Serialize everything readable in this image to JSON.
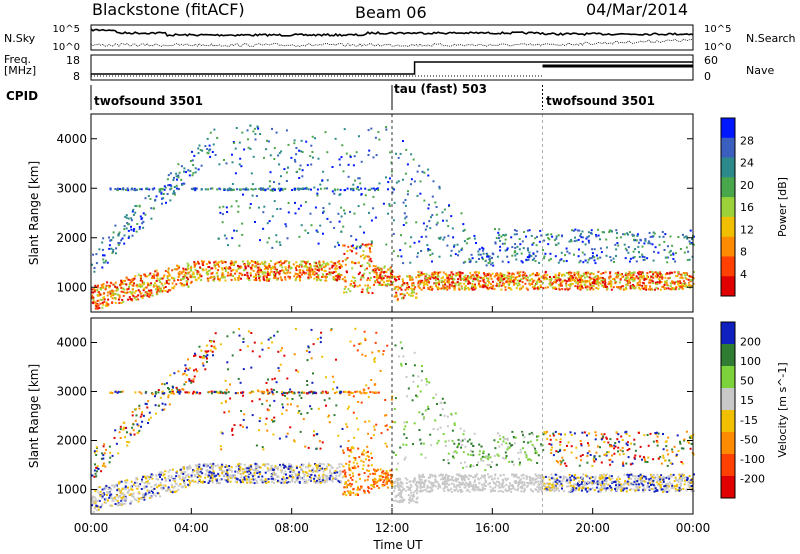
{
  "header": {
    "radar": "Blackstone (fitACF)",
    "beam": "Beam 06",
    "date": "04/Mar/2014"
  },
  "noise_panel": {
    "left_label": "N.Sky",
    "right_label": "N.Search",
    "ticks": [
      "10^5",
      "10^0"
    ]
  },
  "freq_panel": {
    "left_label_line1": "Freq.",
    "left_label_line2": "[MHz]",
    "left_ticks": [
      "18",
      "8"
    ],
    "right_ticks": [
      "60",
      "0"
    ],
    "right_label": "Nave"
  },
  "cpid": {
    "label": "CPID",
    "modes": [
      {
        "name": "twofsound 3501",
        "start_hour": 0
      },
      {
        "name": "tau (fast) 503",
        "start_hour": 12
      },
      {
        "name": "twofsound 3501",
        "start_hour": 18
      }
    ]
  },
  "chart_data": [
    {
      "type": "heatmap",
      "title": "",
      "ylabel": "Slant Range [km]",
      "ylim": [
        500,
        4500
      ],
      "yticks": [
        1000,
        2000,
        3000,
        4000
      ],
      "colorbar": {
        "label": "Power [dB]",
        "ticks": [
          "4",
          "8",
          "12",
          "16",
          "20",
          "24",
          "28"
        ],
        "range": [
          0,
          32
        ],
        "colors": [
          "#0018ff",
          "#3a5fbf",
          "#2d8a8a",
          "#4aa64a",
          "#9bd23a",
          "#f0c000",
          "#ff8c00",
          "#ff4000",
          "#e00000"
        ]
      }
    },
    {
      "type": "heatmap",
      "title": "",
      "ylabel": "Slant Range [km]",
      "ylim": [
        500,
        4500
      ],
      "yticks": [
        1000,
        2000,
        3000,
        4000
      ],
      "xlabel": "Time UT",
      "xticks": [
        "00:00",
        "04:00",
        "08:00",
        "12:00",
        "16:00",
        "20:00",
        "00:00"
      ],
      "colorbar": {
        "label": "Velocity [m s^-1]",
        "ticks": [
          "200",
          "100",
          "50",
          "15",
          "-15",
          "-50",
          "-100",
          "-200"
        ],
        "range": [
          -250,
          250
        ],
        "colors": [
          "#1020c0",
          "#2e7d32",
          "#7cd23a",
          "#c8c8c8",
          "#f0c000",
          "#ff8c00",
          "#ff4000",
          "#e00000"
        ]
      }
    }
  ]
}
